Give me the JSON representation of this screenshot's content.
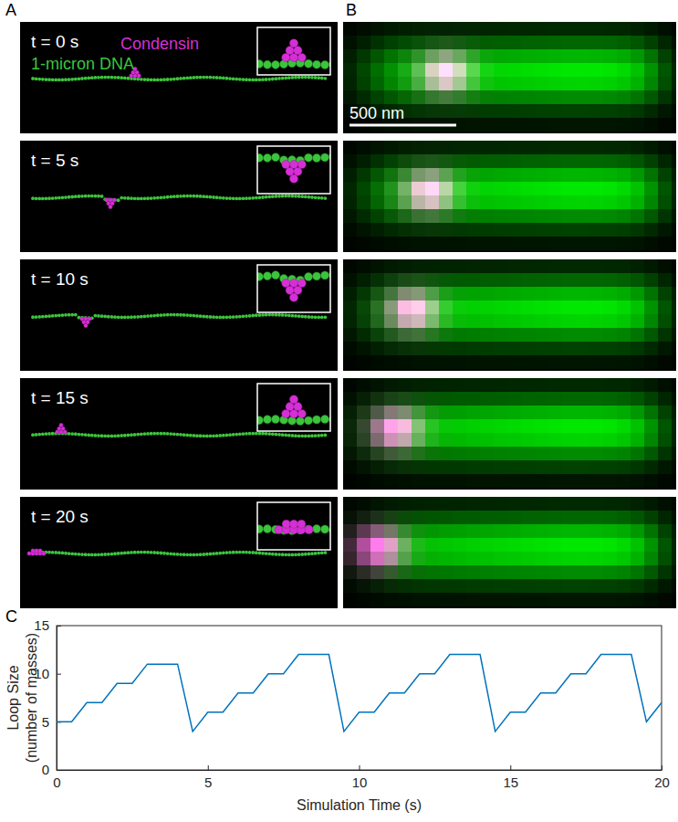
{
  "panel_labels": [
    "A",
    "B",
    "C"
  ],
  "panel_a": {
    "times": [
      "t = 0 s",
      "t = 5 s",
      "t = 10 s",
      "t = 15 s",
      "t = 20 s"
    ],
    "condensin_label": "Condensin",
    "dna_label": "1-micron DNA"
  },
  "panel_b": {
    "scale_bar": "500 nm"
  },
  "chart_data": {
    "type": "line",
    "x_label": "Simulation Time (s)",
    "y_label": [
      "Loop Size",
      "(number of masses)"
    ],
    "x": [
      0,
      0.5,
      1,
      1.5,
      2,
      2.5,
      3,
      3.5,
      4,
      4.5,
      5,
      5.5,
      6,
      6.5,
      7,
      7.5,
      8,
      8.5,
      9,
      9.5,
      10,
      10.5,
      11,
      11.5,
      12,
      12.5,
      13,
      13.5,
      14,
      14.5,
      15,
      15.5,
      16,
      16.5,
      17,
      17.5,
      18,
      18.5,
      19,
      19.5,
      20
    ],
    "values": [
      5,
      5,
      7,
      7,
      9,
      9,
      11,
      11,
      11,
      4,
      6,
      6,
      8,
      8,
      10,
      10,
      12,
      12,
      12,
      4,
      6,
      6,
      8,
      8,
      10,
      10,
      12,
      12,
      12,
      4,
      6,
      6,
      8,
      8,
      10,
      10,
      12,
      12,
      12,
      5,
      7
    ],
    "color": "#0072bd",
    "xlim": [
      0,
      20
    ],
    "xticks": [
      0,
      5,
      10,
      15,
      20
    ],
    "ylim": [
      0,
      15
    ],
    "yticks": [
      0,
      5,
      10,
      15
    ]
  }
}
